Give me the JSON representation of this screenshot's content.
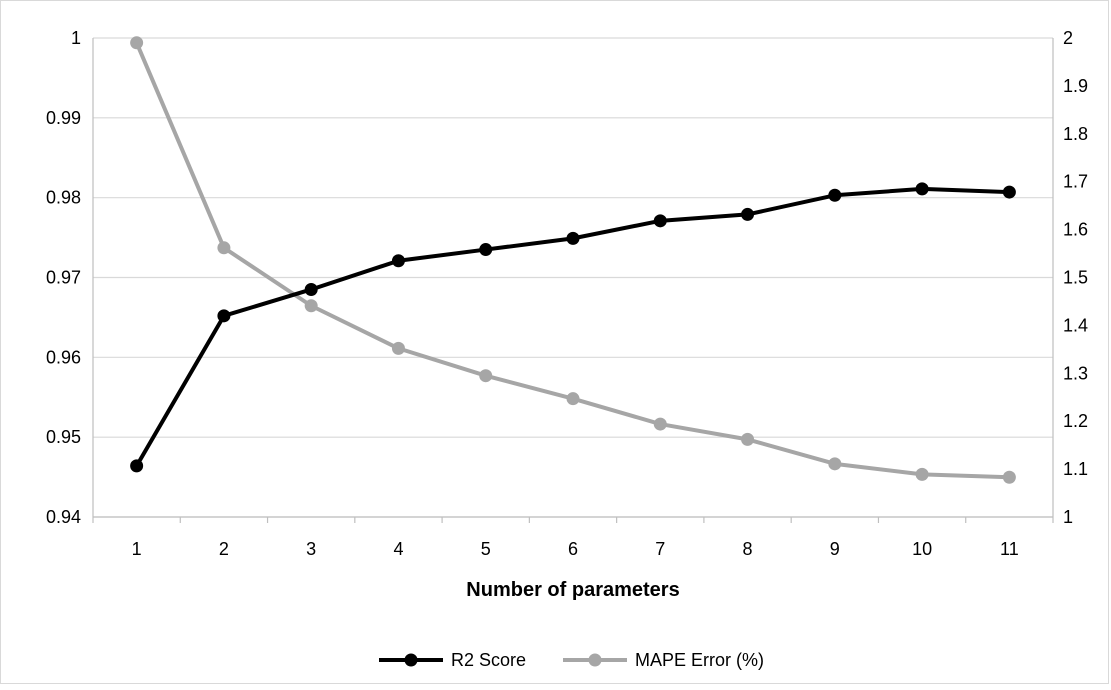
{
  "chart_data": {
    "type": "line",
    "title": "",
    "xlabel": "Number of parameters",
    "ylabel": "",
    "y2label": "",
    "categories": [
      "1",
      "2",
      "3",
      "4",
      "5",
      "6",
      "7",
      "8",
      "9",
      "10",
      "11"
    ],
    "ylim": [
      0.94,
      1
    ],
    "y_ticks": [
      "0.94",
      "0.95",
      "0.96",
      "0.97",
      "0.98",
      "0.99",
      "1"
    ],
    "y2lim": [
      1,
      2
    ],
    "y2_ticks": [
      "1",
      "1.1",
      "1.2",
      "1.3",
      "1.4",
      "1.5",
      "1.6",
      "1.7",
      "1.8",
      "1.9",
      "2"
    ],
    "grid": true,
    "legend_position": "bottom",
    "series": [
      {
        "name": "R2 Score",
        "axis": "left",
        "color": "#000000",
        "values": [
          0.9464,
          0.9652,
          0.9685,
          0.9721,
          0.9735,
          0.9749,
          0.9771,
          0.9779,
          0.9803,
          0.9811,
          0.9807
        ]
      },
      {
        "name": "MAPE Error (%)",
        "axis": "right",
        "color": "#a6a6a6",
        "values": [
          1.99,
          1.562,
          1.441,
          1.352,
          1.295,
          1.247,
          1.194,
          1.162,
          1.111,
          1.089,
          1.083
        ]
      }
    ]
  }
}
